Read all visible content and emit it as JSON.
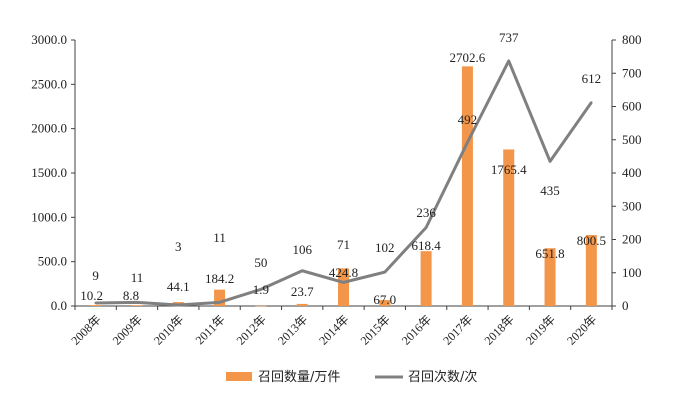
{
  "chart_data": {
    "type": "bar+line",
    "categories": [
      "2008年",
      "2009年",
      "2010年",
      "2011年",
      "2012年",
      "2013年",
      "2014年",
      "2015年",
      "2016年",
      "2017年",
      "2018年",
      "2019年",
      "2020年"
    ],
    "series": [
      {
        "name": "召回数量/万件",
        "type": "bar",
        "axis": "left",
        "values": [
          10.2,
          8.8,
          44.1,
          184.2,
          1.9,
          23.7,
          424.8,
          67.0,
          618.4,
          2702.6,
          1765.4,
          651.8,
          800.5
        ],
        "labels": [
          "10.2",
          "8.8",
          "44.1",
          "184.2",
          "1.9",
          "23.7",
          "424.8",
          "67.0",
          "618.4",
          "2702.6",
          "1765.4",
          "651.8",
          "800.5"
        ],
        "color": "#F4964A"
      },
      {
        "name": "召回次数/次",
        "type": "line",
        "axis": "right",
        "values": [
          9,
          11,
          3,
          11,
          50,
          106,
          71,
          102,
          236,
          492,
          737,
          435,
          612
        ],
        "labels": [
          "9",
          "11",
          "3",
          "11",
          "50",
          "106",
          "71",
          "102",
          "236",
          "492",
          "737",
          "435",
          "612"
        ],
        "color": "#808080"
      }
    ],
    "y_left": {
      "min": 0,
      "max": 3000,
      "ticks": [
        "0.0",
        "500.0",
        "1000.0",
        "1500.0",
        "2000.0",
        "2500.0",
        "3000.0"
      ]
    },
    "y_right": {
      "min": 0,
      "max": 800,
      "ticks": [
        "0",
        "100",
        "200",
        "300",
        "400",
        "500",
        "600",
        "700",
        "800"
      ]
    },
    "legend_position": "bottom",
    "grid": false
  }
}
